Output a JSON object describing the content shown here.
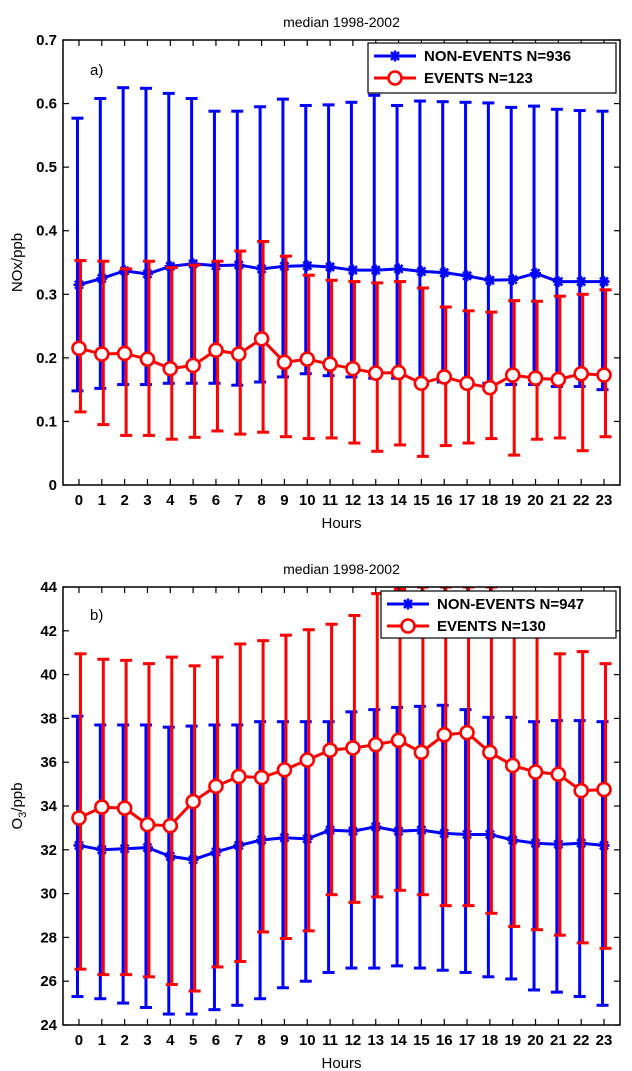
{
  "chart_data": [
    {
      "type": "line",
      "panel_label": "a)",
      "title": "median 1998-2002",
      "xlabel": "Hours",
      "ylabel": "NOx/ppb",
      "xlim": [
        -0.7,
        23.7
      ],
      "ylim": [
        0,
        0.7
      ],
      "yticks": [
        0,
        0.1,
        0.2,
        0.3,
        0.4,
        0.5,
        0.6,
        0.7
      ],
      "ytick_labels": [
        "0",
        "0.1",
        "0.2",
        "0.3",
        "0.4",
        "0.5",
        "0.6",
        "0.7"
      ],
      "x": [
        0,
        1,
        2,
        3,
        4,
        5,
        6,
        7,
        8,
        9,
        10,
        11,
        12,
        13,
        14,
        15,
        16,
        17,
        18,
        19,
        20,
        21,
        22,
        23
      ],
      "x_labels": [
        "0",
        "1",
        "2",
        "3",
        "4",
        "5",
        "6",
        "7",
        "8",
        "9",
        "10",
        "11",
        "12",
        "13",
        "14",
        "15",
        "16",
        "17",
        "18",
        "19",
        "20",
        "21",
        "22",
        "23"
      ],
      "grid": false,
      "legend_position": "top-right",
      "series": [
        {
          "name": "NON-EVENTS N=936",
          "color": "#0000ff",
          "marker": "asterisk",
          "values": [
            0.315,
            0.325,
            0.337,
            0.332,
            0.344,
            0.348,
            0.345,
            0.346,
            0.34,
            0.344,
            0.345,
            0.343,
            0.338,
            0.338,
            0.34,
            0.336,
            0.334,
            0.329,
            0.322,
            0.323,
            0.333,
            0.32,
            0.32,
            0.32
          ],
          "lower": [
            0.148,
            0.152,
            0.158,
            0.158,
            0.16,
            0.16,
            0.16,
            0.157,
            0.162,
            0.17,
            0.175,
            0.172,
            0.17,
            0.168,
            0.168,
            0.165,
            0.162,
            0.16,
            0.16,
            0.158,
            0.158,
            0.155,
            0.155,
            0.15
          ],
          "upper": [
            0.577,
            0.608,
            0.625,
            0.624,
            0.616,
            0.608,
            0.588,
            0.588,
            0.595,
            0.607,
            0.597,
            0.598,
            0.602,
            0.613,
            0.597,
            0.604,
            0.603,
            0.602,
            0.601,
            0.594,
            0.596,
            0.591,
            0.589,
            0.588
          ]
        },
        {
          "name": "EVENTS N=123",
          "color": "#ff0000",
          "marker": "circle",
          "values": [
            0.215,
            0.206,
            0.207,
            0.198,
            0.183,
            0.188,
            0.212,
            0.206,
            0.23,
            0.193,
            0.198,
            0.19,
            0.183,
            0.176,
            0.177,
            0.16,
            0.17,
            0.16,
            0.153,
            0.173,
            0.168,
            0.166,
            0.175,
            0.173
          ],
          "lower": [
            0.115,
            0.095,
            0.078,
            0.078,
            0.072,
            0.075,
            0.085,
            0.08,
            0.083,
            0.076,
            0.073,
            0.074,
            0.066,
            0.053,
            0.063,
            0.045,
            0.062,
            0.066,
            0.073,
            0.047,
            0.072,
            0.074,
            0.054,
            0.076
          ],
          "upper": [
            0.353,
            0.352,
            0.34,
            0.352,
            0.342,
            0.346,
            0.352,
            0.368,
            0.383,
            0.36,
            0.33,
            0.322,
            0.32,
            0.318,
            0.32,
            0.31,
            0.28,
            0.274,
            0.272,
            0.29,
            0.289,
            0.297,
            0.3,
            0.307
          ]
        }
      ]
    },
    {
      "type": "line",
      "panel_label": "b)",
      "title": "median 1998-2002",
      "xlabel": "Hours",
      "ylabel_main": "O",
      "ylabel_sub": "3",
      "ylabel_tail": "/ppb",
      "xlim": [
        -0.7,
        23.7
      ],
      "ylim": [
        24,
        44
      ],
      "yticks": [
        24,
        26,
        28,
        30,
        32,
        34,
        36,
        38,
        40,
        42,
        44
      ],
      "ytick_labels": [
        "24",
        "26",
        "28",
        "30",
        "32",
        "34",
        "36",
        "38",
        "40",
        "42",
        "44"
      ],
      "x": [
        0,
        1,
        2,
        3,
        4,
        5,
        6,
        7,
        8,
        9,
        10,
        11,
        12,
        13,
        14,
        15,
        16,
        17,
        18,
        19,
        20,
        21,
        22,
        23
      ],
      "x_labels": [
        "0",
        "1",
        "2",
        "3",
        "4",
        "5",
        "6",
        "7",
        "8",
        "9",
        "10",
        "11",
        "12",
        "13",
        "14",
        "15",
        "16",
        "17",
        "18",
        "19",
        "20",
        "21",
        "22",
        "23"
      ],
      "grid": false,
      "legend_position": "top-right",
      "series": [
        {
          "name": "NON-EVENTS N=947",
          "color": "#0000ff",
          "marker": "asterisk",
          "values": [
            32.2,
            32.0,
            32.05,
            32.1,
            31.7,
            31.55,
            31.9,
            32.2,
            32.45,
            32.55,
            32.5,
            32.9,
            32.85,
            33.05,
            32.85,
            32.9,
            32.75,
            32.7,
            32.7,
            32.45,
            32.3,
            32.25,
            32.3,
            32.2
          ],
          "lower": [
            25.3,
            25.2,
            25.0,
            24.8,
            24.5,
            24.5,
            24.7,
            24.9,
            25.2,
            25.7,
            26.0,
            26.4,
            26.6,
            26.6,
            26.7,
            26.6,
            26.5,
            26.4,
            26.2,
            26.1,
            25.6,
            25.5,
            25.3,
            24.9
          ],
          "upper": [
            38.1,
            37.7,
            37.7,
            37.7,
            37.6,
            37.65,
            37.7,
            37.7,
            37.85,
            37.85,
            37.85,
            37.85,
            38.3,
            38.4,
            38.5,
            38.55,
            38.6,
            38.4,
            38.05,
            38.05,
            37.85,
            37.9,
            37.9,
            37.85
          ]
        },
        {
          "name": "EVENTS N=130",
          "color": "#ff0000",
          "marker": "circle",
          "values": [
            33.45,
            33.95,
            33.9,
            33.15,
            33.1,
            34.2,
            34.9,
            35.35,
            35.3,
            35.65,
            36.1,
            36.55,
            36.65,
            36.8,
            37.0,
            36.45,
            37.25,
            37.35,
            36.45,
            35.85,
            35.55,
            35.45,
            34.7,
            34.75
          ],
          "lower": [
            26.55,
            26.3,
            26.3,
            26.2,
            25.85,
            25.55,
            26.65,
            26.9,
            28.25,
            27.95,
            28.3,
            29.95,
            29.6,
            29.85,
            30.15,
            29.95,
            29.45,
            29.45,
            29.1,
            28.5,
            28.35,
            28.1,
            27.75,
            27.5
          ],
          "upper": [
            40.95,
            40.7,
            40.65,
            40.5,
            40.8,
            40.4,
            40.8,
            41.4,
            41.55,
            41.8,
            42.05,
            42.3,
            42.7,
            43.7,
            43.9,
            44.0,
            44.0,
            44.0,
            44.0,
            43.1,
            42.0,
            40.95,
            41.05,
            40.5
          ]
        }
      ]
    }
  ]
}
